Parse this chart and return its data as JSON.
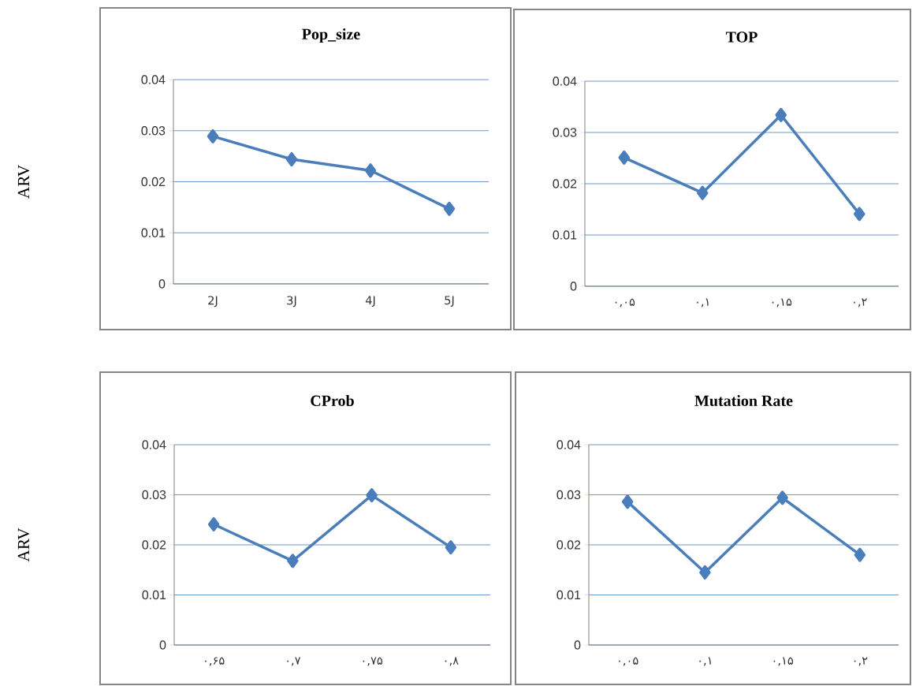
{
  "chart_data": [
    {
      "type": "line",
      "title": "Pop_size",
      "ylabel": "ARV",
      "categories": [
        "2J",
        "3J",
        "4J",
        "5J"
      ],
      "values": [
        0.0289,
        0.0244,
        0.0222,
        0.0147
      ],
      "color": "#4a7ebb",
      "ylim": [
        0,
        0.04
      ],
      "yticks": [
        0,
        0.01,
        0.02,
        0.03,
        0.04
      ],
      "grid": "y",
      "marker": "diamond"
    },
    {
      "type": "line",
      "title": "TOP",
      "categories": [
        "۰,۰۵",
        "۰,۱",
        "۰,۱۵",
        "۰,۲"
      ],
      "values": [
        0.0251,
        0.0182,
        0.0334,
        0.0141
      ],
      "color": "#4a7ebb",
      "ylim": [
        0,
        0.04
      ],
      "yticks": [
        0,
        0.01,
        0.02,
        0.03,
        0.04
      ],
      "grid": "y",
      "marker": "diamond"
    },
    {
      "type": "line",
      "title": "CProb",
      "ylabel": "ARV",
      "categories": [
        "۰,۶۵",
        "۰,۷",
        "۰,۷۵",
        "۰,۸"
      ],
      "values": [
        0.0241,
        0.0168,
        0.0299,
        0.0195
      ],
      "color": "#4a7ebb",
      "ylim": [
        0,
        0.04
      ],
      "yticks": [
        0,
        0.01,
        0.02,
        0.03,
        0.04
      ],
      "grid": "y",
      "marker": "diamond"
    },
    {
      "type": "line",
      "title": "Mutation Rate",
      "categories": [
        "۰,۰۵",
        "۰,۱",
        "۰,۱۵",
        "۰,۲"
      ],
      "values": [
        0.0286,
        0.0145,
        0.0294,
        0.018
      ],
      "color": "#4a7ebb",
      "ylim": [
        0,
        0.04
      ],
      "yticks": [
        0,
        0.01,
        0.02,
        0.03,
        0.04
      ],
      "grid": "y",
      "marker": "diamond"
    }
  ]
}
